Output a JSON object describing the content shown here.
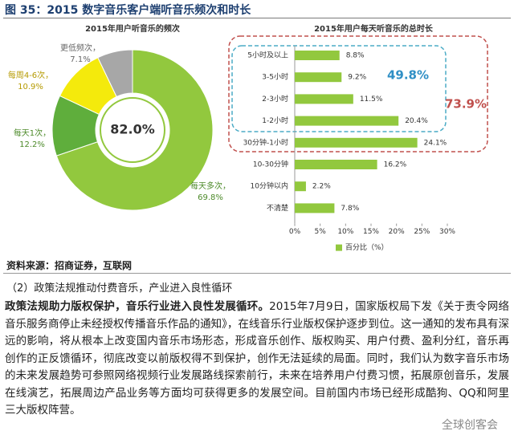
{
  "header": {
    "title": "图 35：2015 数字音乐客户端听音乐频次和时长"
  },
  "chart_data": [
    {
      "type": "pie",
      "title": "2015年用户听音乐的频次",
      "center_label": "82.0%",
      "categories": [
        "每天多次，",
        "每天1次，",
        "每周4-6次，",
        "更低频次，"
      ],
      "values": [
        69.8,
        12.2,
        10.9,
        7.1
      ],
      "value_labels": [
        "69.8%",
        "12.2%",
        "10.9%",
        "7.1%"
      ],
      "colors": [
        "#92c83e",
        "#5fae3c",
        "#f4ea0c",
        "#a7a7a7"
      ]
    },
    {
      "type": "bar",
      "orientation": "horizontal",
      "title": "2015年用户每天听音乐的总时长",
      "categories": [
        "5小时及以上",
        "3-5小时",
        "2-3小时",
        "1-2小时",
        "30分钟-1小时",
        "10-30分钟",
        "10分钟以内",
        "不清楚"
      ],
      "series": [
        {
          "name": "百分比（%）",
          "color": "#92c83e",
          "values": [
            8.8,
            9.2,
            11.5,
            20.4,
            24.1,
            16.2,
            2.2,
            7.8
          ],
          "value_labels": [
            "8.8%",
            "9.2%",
            "11.5%",
            "20.4%",
            "24.1%",
            "16.2%",
            "2.2%",
            "7.8%"
          ]
        }
      ],
      "xlim": [
        0,
        30
      ],
      "xticks": [
        {
          "value": 0,
          "label": "0%"
        },
        {
          "value": 5,
          "label": "5%"
        },
        {
          "value": 10,
          "label": "10%"
        },
        {
          "value": 15,
          "label": "15%"
        },
        {
          "value": 20,
          "label": "20%"
        },
        {
          "value": 25,
          "label": "25%"
        },
        {
          "value": 30,
          "label": "30%"
        }
      ],
      "annotations": [
        "49.8%",
        "73.9%"
      ]
    }
  ],
  "source": "资料来源：招商证券，互联网",
  "section": {
    "heading": "（2）政策法规推动付费音乐，产业进入良性循环",
    "lead": "政策法规助力版权保护，音乐行业进入良性发展循环。",
    "body": "2015年7月9日，国家版权局下发《关于责令网络音乐服务商停止未经授权传播音乐作品的通知》，在线音乐行业版权保护逐步到位。这一通知的发布具有深远的影响，将从根本上改变国内音乐市场形态，形成音乐创作、版权购买、用户付费、盈利分红，音乐再创作的正反馈循环，彻底改变以前版权得不到保护，创作无法延续的局面。同时，我们认为数字音乐市场的未来发展趋势可参照网络视频行业发展路线探索前行，未来在培养用户付费习惯，拓展原创音乐，发展在线演艺，拓展周边产品业务等方面均可获得更多的发展空间。目前国内市场已经形成酷狗、QQ和阿里三大版权阵营。"
  },
  "watermark": "全球创客会"
}
